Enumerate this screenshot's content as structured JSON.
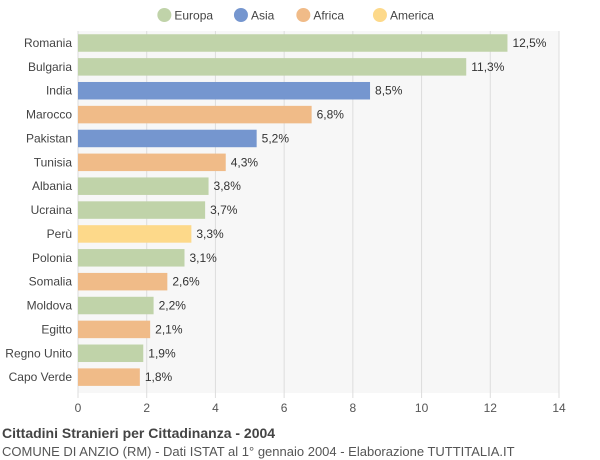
{
  "chart_data": {
    "type": "bar",
    "orientation": "horizontal",
    "title": "Cittadini Stranieri per Cittadinanza - 2004",
    "subtitle": "COMUNE DI ANZIO (RM) - Dati ISTAT al 1° gennaio 2004 - Elaborazione TUTTITALIA.IT",
    "xlim": [
      0,
      14
    ],
    "xticks": [
      0,
      2,
      4,
      6,
      8,
      10,
      12,
      14
    ],
    "grid": true,
    "legend_position": "top-center",
    "legend": [
      {
        "name": "Europa",
        "color": "#c0d3a9"
      },
      {
        "name": "Asia",
        "color": "#7596cf"
      },
      {
        "name": "Africa",
        "color": "#f0bb88"
      },
      {
        "name": "America",
        "color": "#fdd98a"
      }
    ],
    "bars": [
      {
        "category": "Romania",
        "value": 12.5,
        "label": "12,5%",
        "group": "Europa"
      },
      {
        "category": "Bulgaria",
        "value": 11.3,
        "label": "11,3%",
        "group": "Europa"
      },
      {
        "category": "India",
        "value": 8.5,
        "label": "8,5%",
        "group": "Asia"
      },
      {
        "category": "Marocco",
        "value": 6.8,
        "label": "6,8%",
        "group": "Africa"
      },
      {
        "category": "Pakistan",
        "value": 5.2,
        "label": "5,2%",
        "group": "Asia"
      },
      {
        "category": "Tunisia",
        "value": 4.3,
        "label": "4,3%",
        "group": "Africa"
      },
      {
        "category": "Albania",
        "value": 3.8,
        "label": "3,8%",
        "group": "Europa"
      },
      {
        "category": "Ucraina",
        "value": 3.7,
        "label": "3,7%",
        "group": "Europa"
      },
      {
        "category": "Perù",
        "value": 3.3,
        "label": "3,3%",
        "group": "America"
      },
      {
        "category": "Polonia",
        "value": 3.1,
        "label": "3,1%",
        "group": "Europa"
      },
      {
        "category": "Somalia",
        "value": 2.6,
        "label": "2,6%",
        "group": "Africa"
      },
      {
        "category": "Moldova",
        "value": 2.2,
        "label": "2,2%",
        "group": "Europa"
      },
      {
        "category": "Egitto",
        "value": 2.1,
        "label": "2,1%",
        "group": "Africa"
      },
      {
        "category": "Regno Unito",
        "value": 1.9,
        "label": "1,9%",
        "group": "Europa"
      },
      {
        "category": "Capo Verde",
        "value": 1.8,
        "label": "1,8%",
        "group": "Africa"
      }
    ]
  }
}
